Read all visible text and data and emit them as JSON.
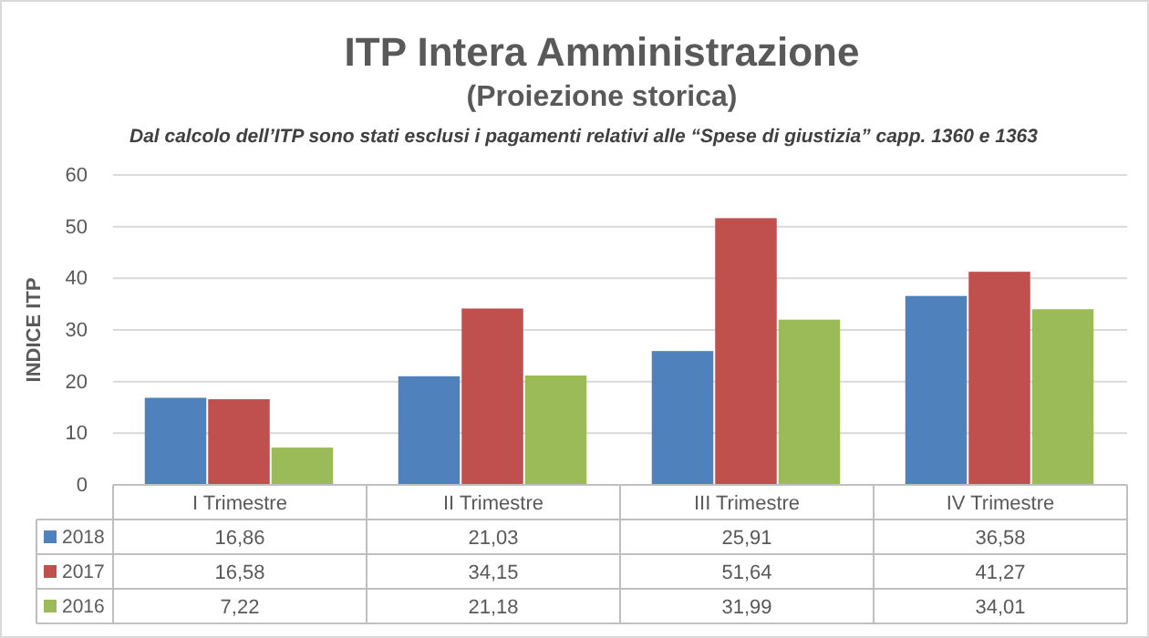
{
  "chart_data": {
    "type": "bar",
    "title": "ITP Intera Amministrazione",
    "subtitle": "(Proiezione storica)",
    "annotations": [
      "Dal calcolo dell’ITP sono stati esclusi i pagamenti relativi alle “Spese di giustizia” capp. 1360 e 1363"
    ],
    "ylabel": "INDICE ITP",
    "categories": [
      "I Trimestre",
      "II Trimestre",
      "III Trimestre",
      "IV Trimestre"
    ],
    "series": [
      {
        "name": "2018",
        "color": "#4f81bd",
        "values": [
          16.86,
          21.03,
          25.91,
          36.58
        ],
        "value_labels": [
          "16,86",
          "21,03",
          "25,91",
          "36,58"
        ]
      },
      {
        "name": "2017",
        "color": "#c0504d",
        "values": [
          16.58,
          34.15,
          51.64,
          41.27
        ],
        "value_labels": [
          "16,58",
          "34,15",
          "51,64",
          "41,27"
        ]
      },
      {
        "name": "2016",
        "color": "#9bbb59",
        "values": [
          7.22,
          21.18,
          31.99,
          34.01
        ],
        "value_labels": [
          "7,22",
          "21,18",
          "31,99",
          "34,01"
        ]
      }
    ],
    "ylim": [
      0,
      60
    ],
    "yticks": [
      0,
      10,
      20,
      30,
      40,
      50,
      60
    ],
    "grid": "y",
    "legend": "bottom"
  }
}
